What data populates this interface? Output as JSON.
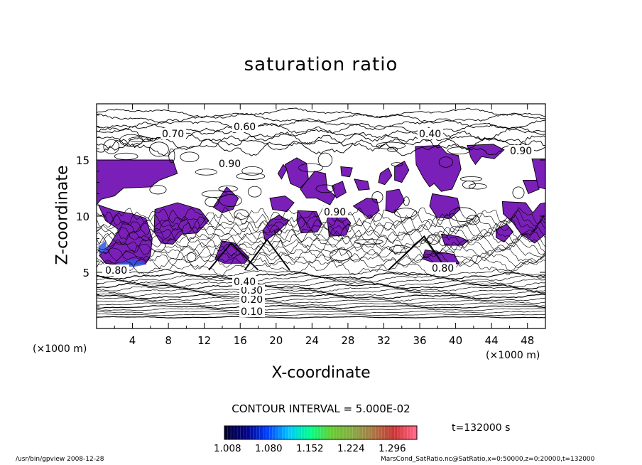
{
  "chart_data": {
    "type": "heatmap",
    "title": "saturation ratio",
    "xlabel": "X-coordinate",
    "ylabel": "Z-coordinate",
    "x_unit": "(×1000 m)",
    "y_unit": "(×1000 m)",
    "xlim": [
      0,
      50
    ],
    "ylim": [
      0,
      20
    ],
    "x_ticks": [
      4,
      8,
      12,
      16,
      20,
      24,
      28,
      32,
      36,
      40,
      44,
      48
    ],
    "y_ticks": [
      5,
      10,
      15
    ],
    "contour_interval": "CONTOUR INTERVAL = 5.000E-02",
    "time_label": "t=132000 s",
    "contour_labels": [
      "0.10",
      "0.20",
      "0.30",
      "0.40",
      "0.60",
      "0.70",
      "0.80",
      "0.90"
    ],
    "colorbar": {
      "ticks": [
        "1.008",
        "1.080",
        "1.152",
        "1.224",
        "1.296"
      ],
      "colors": [
        "#000033",
        "#00008b",
        "#0044ff",
        "#00c8ff",
        "#00ff88",
        "#66cc33",
        "#88aa44",
        "#aa7744",
        "#cc3333",
        "#ff6688"
      ]
    },
    "fill_color": "#7a1fb8"
  },
  "footer": {
    "left": "/usr/bin/gpview   2008-12-28",
    "right": "MarsCond_SatRatio.nc@SatRatio,x=0:50000,z=0:20000,t=132000"
  }
}
